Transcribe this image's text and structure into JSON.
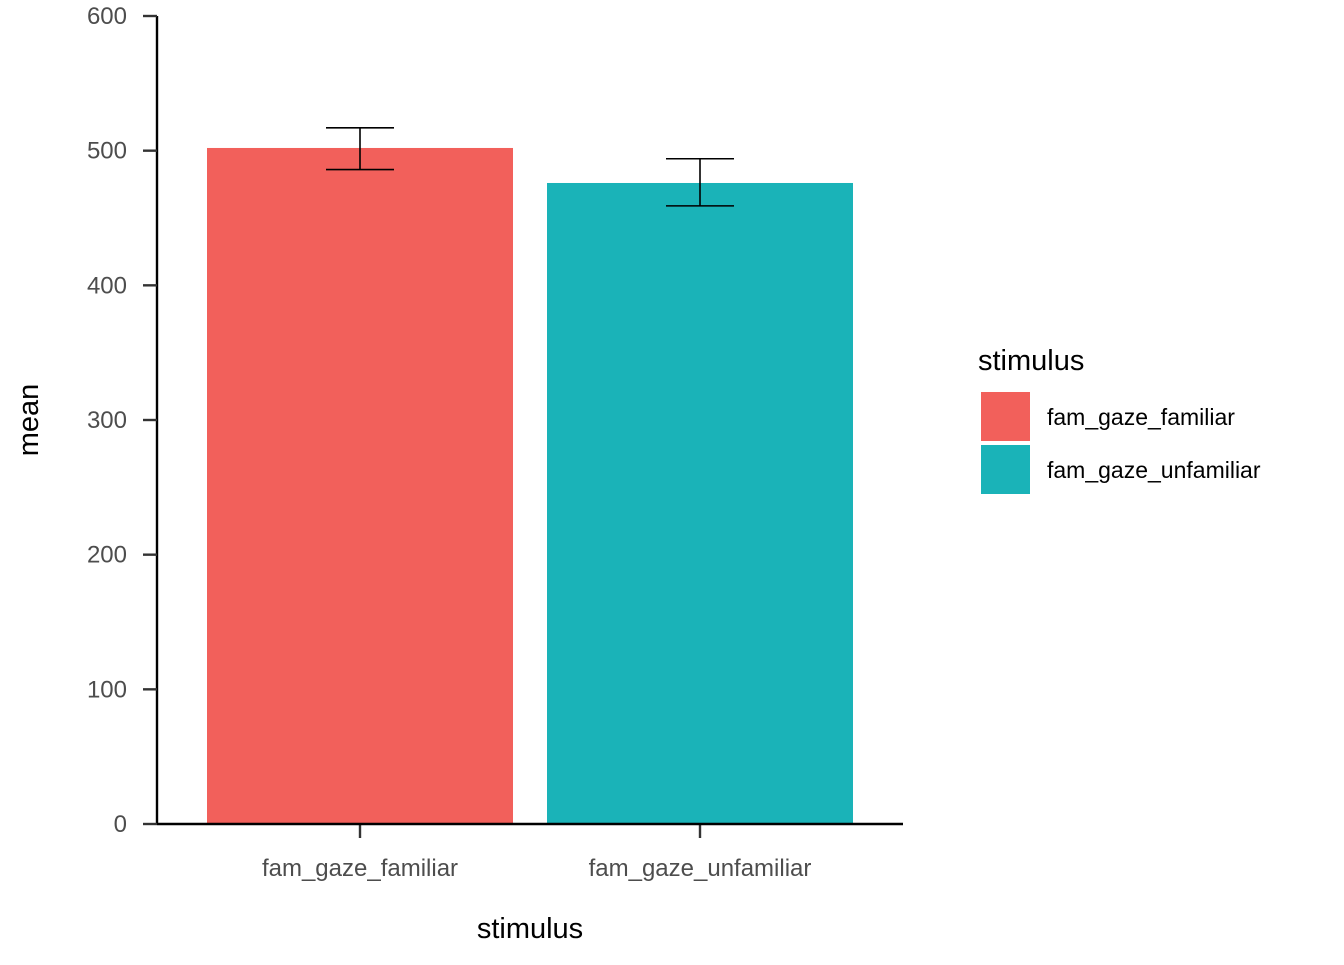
{
  "chart_data": {
    "type": "bar",
    "categories": [
      "fam_gaze_familiar",
      "fam_gaze_unfamiliar"
    ],
    "values": [
      502,
      476
    ],
    "error_bars": [
      {
        "low": 486,
        "high": 517
      },
      {
        "low": 459,
        "high": 494
      }
    ],
    "colors": [
      "#F8766D",
      "#00BFC4"
    ],
    "bar_colors_rendered": [
      "#F2605B",
      "#1AB3B8"
    ],
    "xlabel": "stimulus",
    "ylabel": "mean",
    "ylim": [
      0,
      600
    ],
    "yticks": [
      0,
      100,
      200,
      300,
      400,
      500,
      600
    ],
    "grid": false,
    "legend": {
      "title": "stimulus",
      "placement": "right",
      "entries": [
        "fam_gaze_familiar",
        "fam_gaze_unfamiliar"
      ]
    }
  }
}
